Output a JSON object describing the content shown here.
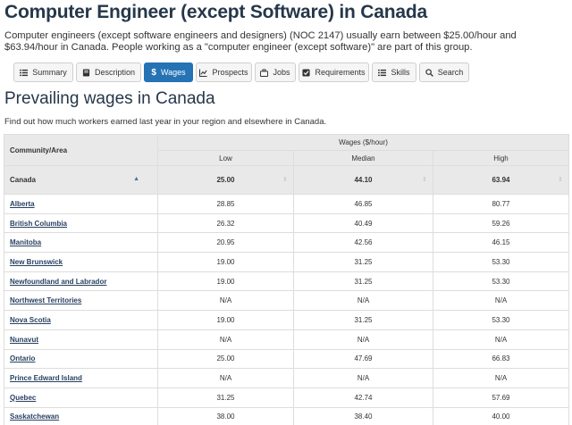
{
  "page": {
    "title": "Computer Engineer (except Software) in Canada",
    "intro": "Computer engineers (except software engineers and designers) (NOC 2147) usually earn between $25.00/hour and $63.94/hour in Canada. People working as a \"computer engineer (except software)\" are part of this group."
  },
  "tabs": [
    {
      "label": "Summary",
      "icon": "list-icon"
    },
    {
      "label": "Description",
      "icon": "book-icon"
    },
    {
      "label": "Wages",
      "icon": "dollar-icon",
      "active": true
    },
    {
      "label": "Prospects",
      "icon": "chart-icon"
    },
    {
      "label": "Jobs",
      "icon": "briefcase-icon"
    },
    {
      "label": "Requirements",
      "icon": "checkbox-icon"
    },
    {
      "label": "Skills",
      "icon": "skills-list-icon"
    },
    {
      "label": "Search",
      "icon": "search-icon"
    }
  ],
  "section": {
    "heading": "Prevailing wages in Canada",
    "subheading": "Find out how much workers earned last year in your region and elsewhere in Canada."
  },
  "table": {
    "area_header": "Community/Area",
    "wages_header": "Wages ($/hour)",
    "columns": [
      "Low",
      "Median",
      "High"
    ],
    "canada": {
      "name": "Canada",
      "low": "25.00",
      "median": "44.10",
      "high": "63.94"
    },
    "rows": [
      {
        "name": "Alberta",
        "low": "28.85",
        "median": "46.85",
        "high": "80.77"
      },
      {
        "name": "British Columbia",
        "low": "26.32",
        "median": "40.49",
        "high": "59.26"
      },
      {
        "name": "Manitoba",
        "low": "20.95",
        "median": "42.56",
        "high": "46.15"
      },
      {
        "name": "New Brunswick",
        "low": "19.00",
        "median": "31.25",
        "high": "53.30"
      },
      {
        "name": "Newfoundland and Labrador",
        "low": "19.00",
        "median": "31.25",
        "high": "53.30"
      },
      {
        "name": "Northwest Territories",
        "low": "N/A",
        "median": "N/A",
        "high": "N/A"
      },
      {
        "name": "Nova Scotia",
        "low": "19.00",
        "median": "31.25",
        "high": "53.30"
      },
      {
        "name": "Nunavut",
        "low": "N/A",
        "median": "N/A",
        "high": "N/A"
      },
      {
        "name": "Ontario",
        "low": "25.00",
        "median": "47.69",
        "high": "66.83"
      },
      {
        "name": "Prince Edward Island",
        "low": "N/A",
        "median": "N/A",
        "high": "N/A"
      },
      {
        "name": "Quebec",
        "low": "31.25",
        "median": "42.74",
        "high": "57.69"
      },
      {
        "name": "Saskatchewan",
        "low": "38.00",
        "median": "38.40",
        "high": "40.00"
      }
    ]
  }
}
